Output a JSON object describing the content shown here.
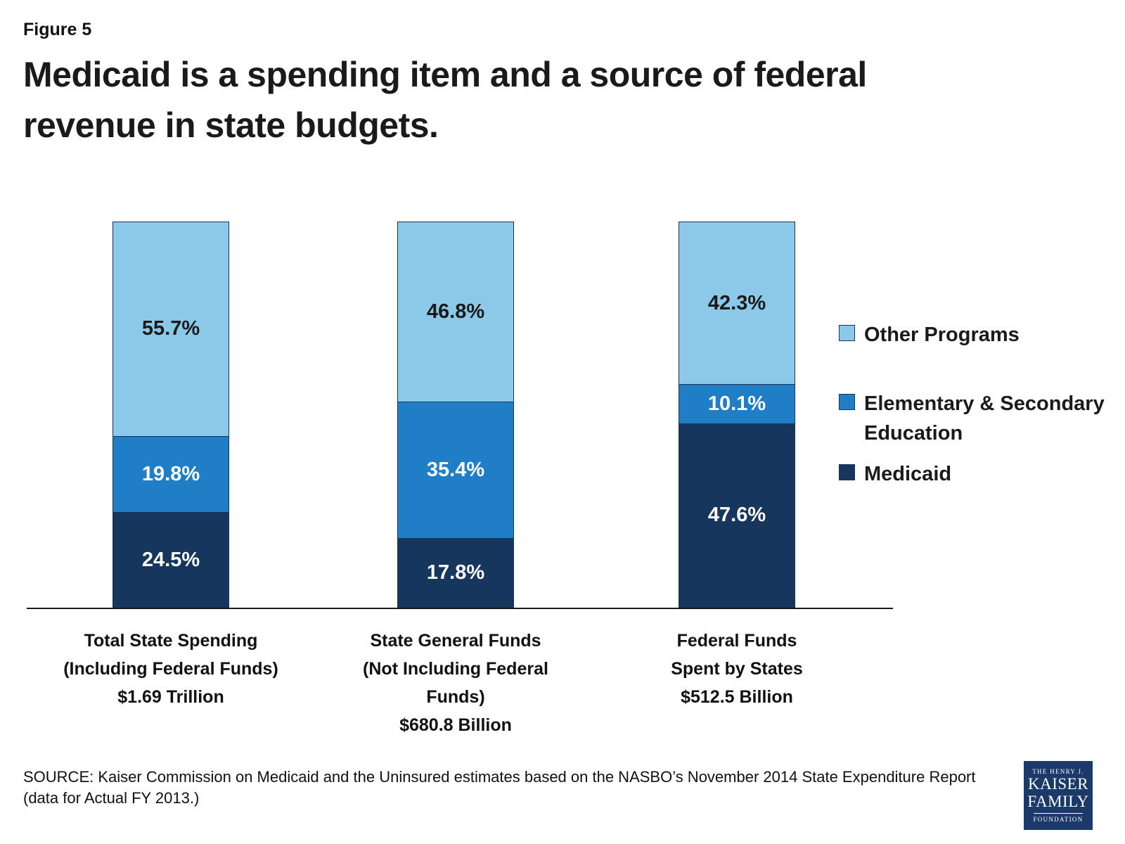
{
  "figure_label": "Figure 5",
  "title": "Medicaid is a spending item and a source of federal revenue in state budgets.",
  "source_line": "SOURCE: Kaiser Commission on Medicaid and the Uninsured estimates based on the NASBO’s November 2014 State Expenditure Report (data for Actual FY 2013.)",
  "logo": {
    "top_small": "THE HENRY J.",
    "name_line1": "KAISER",
    "name_line2": "FAMILY",
    "bottom_small": "FOUNDATION"
  },
  "colors": {
    "medicaid": "#17365D",
    "education": "#1F7EC5",
    "other_programs": "#8CC9E9",
    "baseline": "#1a1a1a"
  },
  "chart_data": {
    "type": "bar",
    "subtype": "stacked-vertical-100pct",
    "stack_unit": "percent",
    "ylim": [
      0,
      100
    ],
    "grid": false,
    "legend_position": "right",
    "categories": [
      "Total State Spending\n(Including Federal Funds)\n$1.69 Trillion",
      "State General Funds\n(Not Including Federal\nFunds)\n$680.8 Billion",
      "Federal Funds\nSpent by States\n$512.5 Billion"
    ],
    "series": [
      {
        "name": "Medicaid",
        "values": [
          24.5,
          17.8,
          47.6
        ],
        "color": "#17365D",
        "label_color": "#FFFFFF"
      },
      {
        "name": "Elementary & Secondary Education",
        "values": [
          19.8,
          35.4,
          10.1
        ],
        "color": "#1F7EC5",
        "label_color": "#FFFFFF"
      },
      {
        "name": "Other Programs",
        "values": [
          55.7,
          46.8,
          42.3
        ],
        "color": "#8CC9E9",
        "label_color": "#1A1A1A"
      }
    ],
    "legend": [
      "Other Programs",
      "Elementary & Secondary Education",
      "Medicaid"
    ]
  }
}
